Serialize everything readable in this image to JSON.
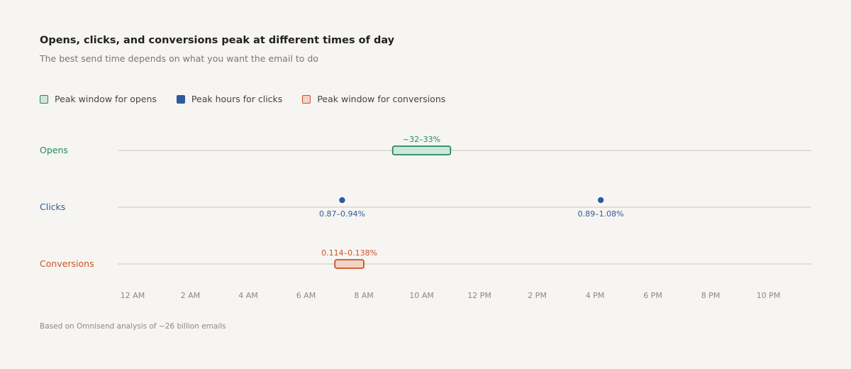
{
  "title": "Opens, clicks, and conversions peak at different times of day",
  "subtitle": "The best send time depends on what you want the email to do",
  "footnote": "Based on Omnisend analysis of ~26 billion emails",
  "legend": [
    {
      "key": "opens",
      "label": "Peak window for opens"
    },
    {
      "key": "clicks",
      "label": "Peak hours for clicks"
    },
    {
      "key": "conv",
      "label": "Peak window for conversions"
    }
  ],
  "colors": {
    "opens": "#1f8a5b",
    "opens_fill": "#cfe6dc",
    "clicks": "#2f5a9c",
    "conv": "#c9532b",
    "conv_fill": "#f2d3c5",
    "axis_line": "#d9d6d0",
    "tick": "#888888"
  },
  "chart_data": {
    "type": "timeline",
    "title": "Opens, clicks, and conversions peak at different times of day",
    "subtitle": "The best send time depends on what you want the email to do",
    "xlim": [
      0,
      24
    ],
    "x_ticks": [
      {
        "hour": 0,
        "label": "12 AM"
      },
      {
        "hour": 2,
        "label": "2 AM"
      },
      {
        "hour": 4,
        "label": "4 AM"
      },
      {
        "hour": 6,
        "label": "6 AM"
      },
      {
        "hour": 8,
        "label": "8 AM"
      },
      {
        "hour": 10,
        "label": "10 AM"
      },
      {
        "hour": 12,
        "label": "12 PM"
      },
      {
        "hour": 14,
        "label": "2 PM"
      },
      {
        "hour": 16,
        "label": "4 PM"
      },
      {
        "hour": 18,
        "label": "6 PM"
      },
      {
        "hour": 20,
        "label": "8 PM"
      },
      {
        "hour": 22,
        "label": "10 PM"
      }
    ],
    "rows": [
      {
        "key": "opens",
        "label": "Opens",
        "windows": [
          {
            "start": 9,
            "end": 11,
            "label": "~32–33%"
          }
        ]
      },
      {
        "key": "clicks",
        "label": "Clicks",
        "points": [
          {
            "hour": 7.25,
            "label": "0.87–0.94%"
          },
          {
            "hour": 16.2,
            "label": "0.89–1.08%"
          }
        ]
      },
      {
        "key": "conv",
        "label": "Conversions",
        "windows": [
          {
            "start": 7,
            "end": 8,
            "label": "0.114–0.138%"
          }
        ]
      }
    ],
    "grid": false,
    "legend_position": "top-left"
  }
}
